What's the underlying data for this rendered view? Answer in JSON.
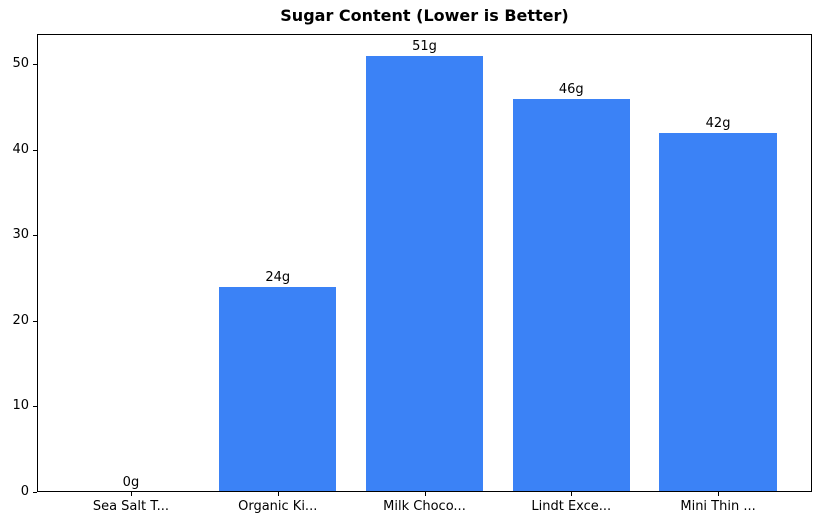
{
  "title": "Sugar Content (Lower is Better)",
  "colors": {
    "bar": "#3b82f6",
    "axis": "#000000",
    "text": "#000000",
    "background": "#ffffff"
  },
  "chart_data": {
    "type": "bar",
    "title": "Sugar Content (Lower is Better)",
    "categories": [
      "Sea Salt T...",
      "Organic Ki...",
      "Milk Choco...",
      "Lindt Exce...",
      "Mini Thin ..."
    ],
    "values": [
      0,
      24,
      51,
      46,
      42
    ],
    "value_labels": [
      "0g",
      "24g",
      "51g",
      "46g",
      "42g"
    ],
    "xlabel": "",
    "ylabel": "",
    "yticks": [
      0,
      10,
      20,
      30,
      40,
      50
    ],
    "ylim": [
      0,
      53.55
    ],
    "grid": false,
    "legend": "none",
    "bar_color": "#3b82f6"
  }
}
